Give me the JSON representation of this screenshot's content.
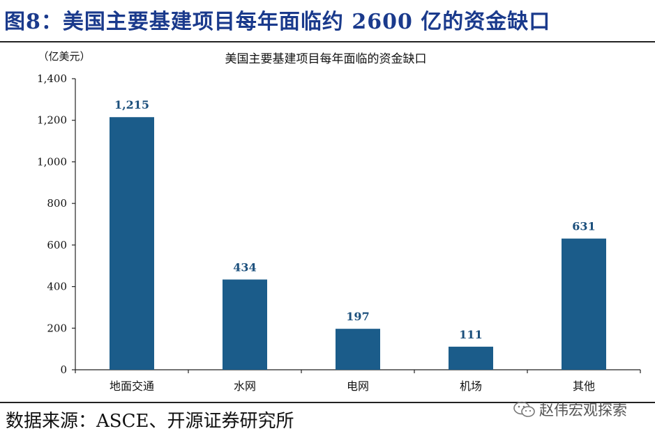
{
  "header": {
    "figure_title": "图8：美国主要基建项目每年面临约 2600 亿的资金缺口"
  },
  "chart_data": {
    "type": "bar",
    "title": "美国主要基建项目每年面临的资金缺口",
    "unit_label": "（亿美元）",
    "categories": [
      "地面交通",
      "水网",
      "电网",
      "机场",
      "其他"
    ],
    "values": [
      1215,
      434,
      197,
      111,
      631
    ],
    "data_labels": [
      "1,215",
      "434",
      "197",
      "111",
      "631"
    ],
    "ylim": [
      0,
      1400
    ],
    "yticks": [
      0,
      200,
      400,
      600,
      800,
      1000,
      1200,
      1400
    ],
    "ytick_labels": [
      "0",
      "200",
      "400",
      "600",
      "800",
      "1,000",
      "1,200",
      "1,400"
    ],
    "grid": false,
    "legend": "none",
    "bar_color": "#1b5c8a",
    "label_color": "#1b4f7c"
  },
  "footer": {
    "source": "数据来源：ASCE、开源证券研究所",
    "watermark": "赵伟宏观探索",
    "watermark_icon": "wechat-icon"
  }
}
